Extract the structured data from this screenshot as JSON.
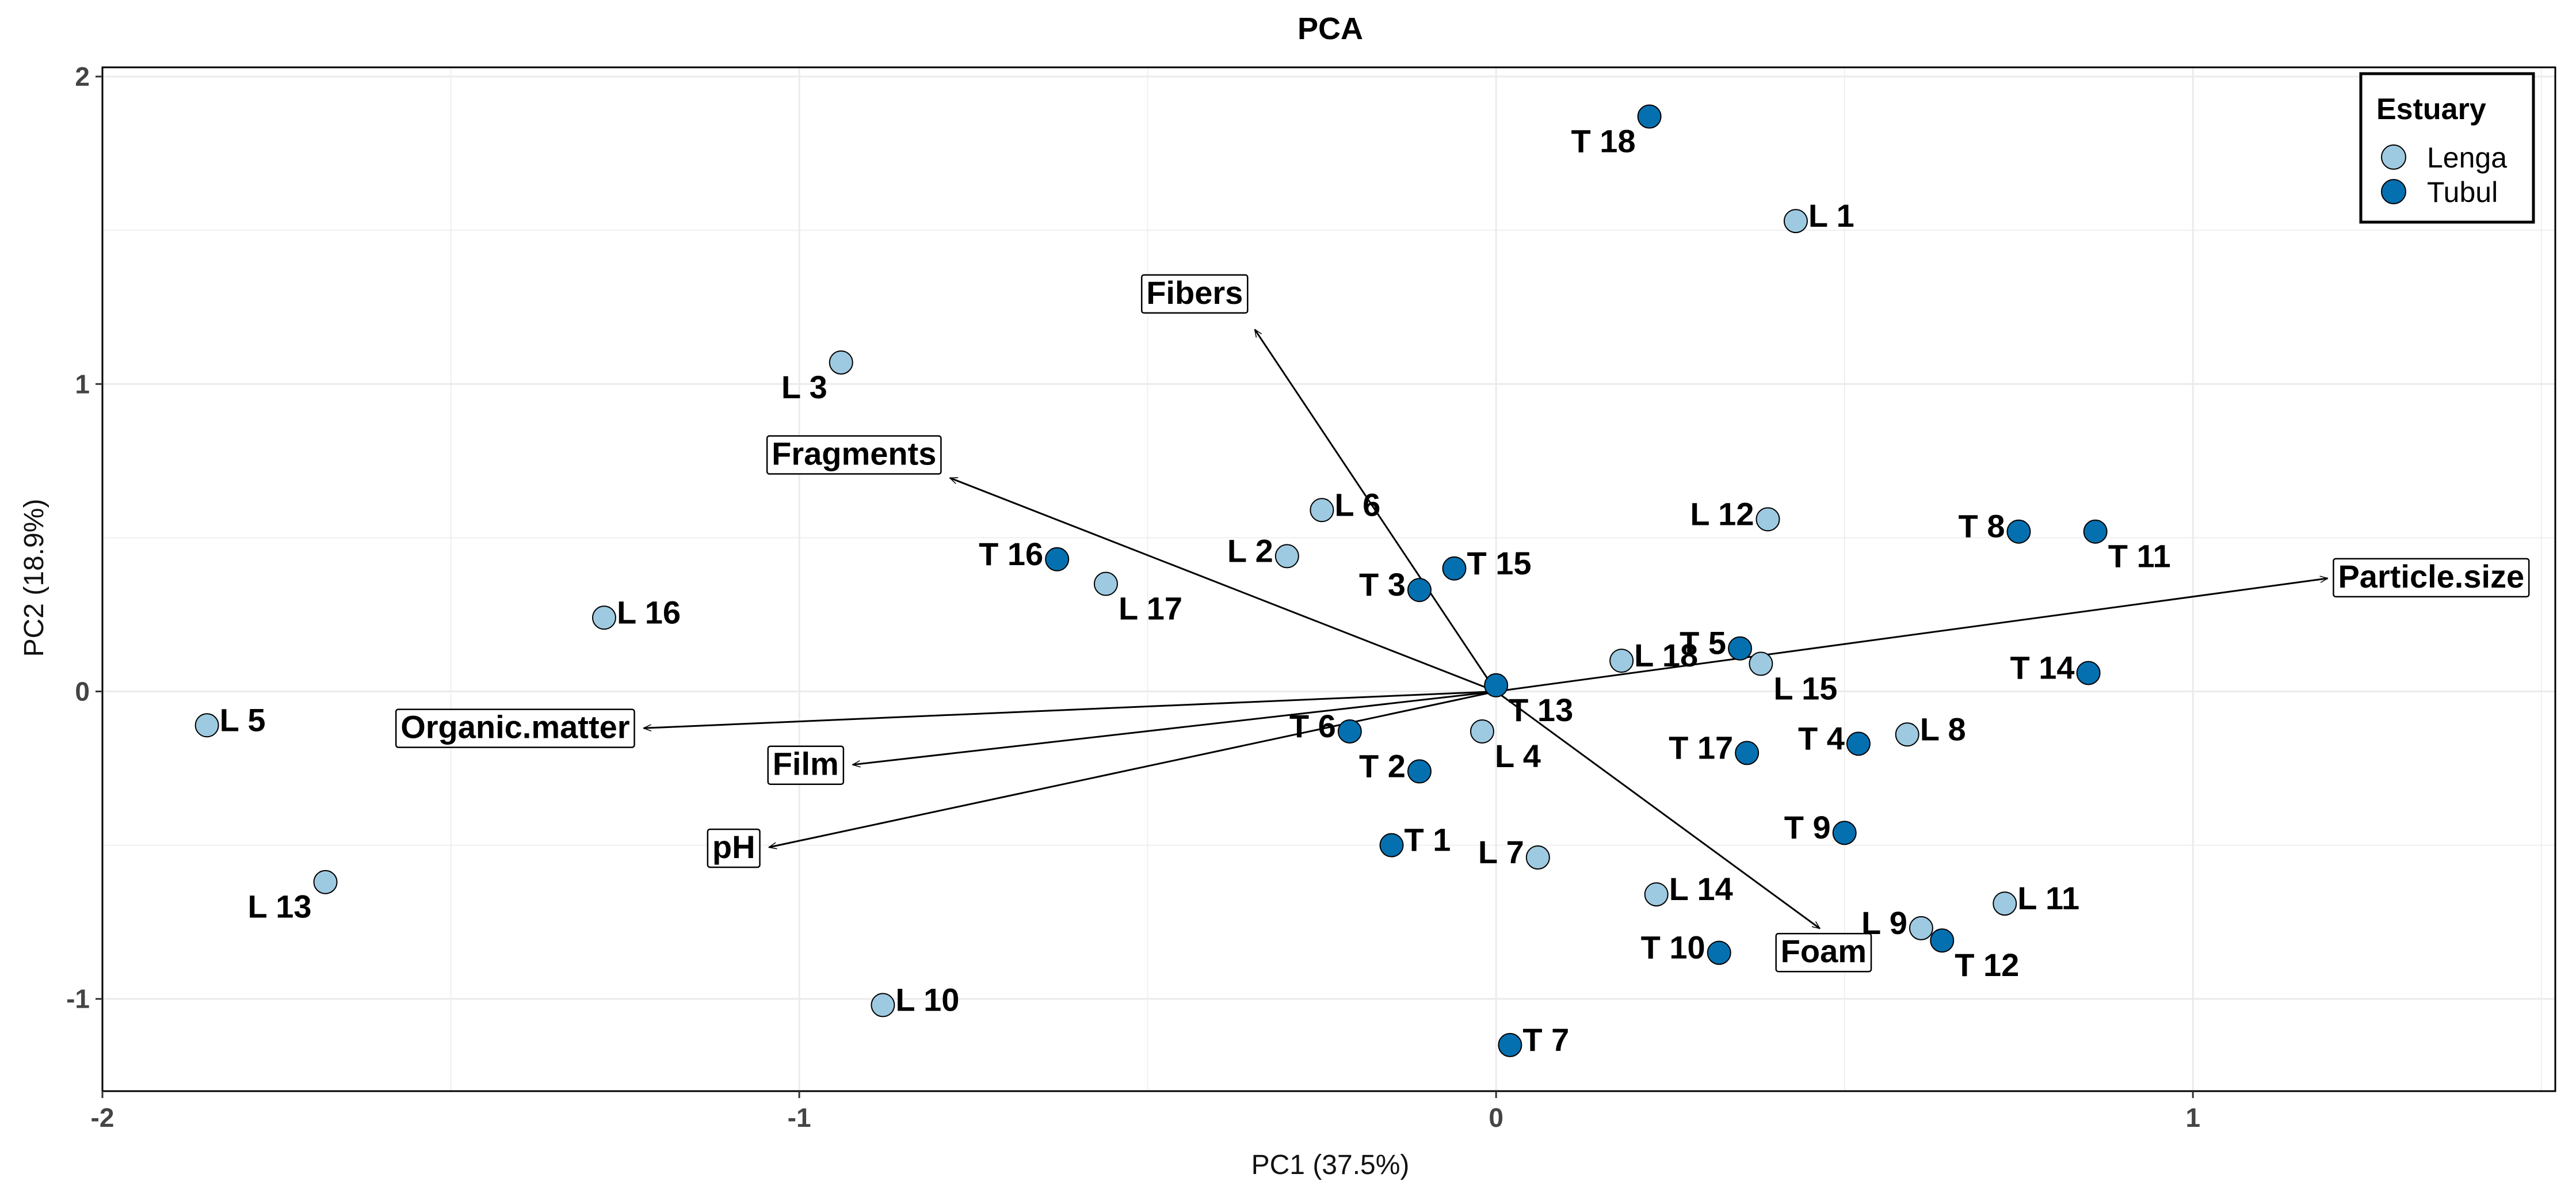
{
  "chart_data": {
    "type": "scatter",
    "title": "PCA",
    "xlabel": "PC1 (37.5%)",
    "ylabel": "PC2 (18.9%)",
    "xlim": [
      -2.0,
      1.52
    ],
    "ylim": [
      -1.3,
      2.03
    ],
    "x_ticks": [
      -2,
      -1,
      0,
      1
    ],
    "y_ticks": [
      2,
      1,
      0,
      -1
    ],
    "grid": true,
    "legend": {
      "title": "Estuary",
      "placement": "top-right",
      "entries": [
        {
          "name": "Lenga",
          "color": "#9ecae1"
        },
        {
          "name": "Tubul",
          "color": "#0570b0"
        }
      ]
    },
    "series": [
      {
        "name": "Lenga",
        "color": "#9ecae1",
        "points": [
          {
            "label": "L 1",
            "x": 0.43,
            "y": 1.53
          },
          {
            "label": "L 2",
            "x": -0.3,
            "y": 0.44
          },
          {
            "label": "L 3",
            "x": -0.94,
            "y": 1.07
          },
          {
            "label": "L 4",
            "x": -0.02,
            "y": -0.13
          },
          {
            "label": "L 5",
            "x": -1.85,
            "y": -0.11
          },
          {
            "label": "L 6",
            "x": -0.25,
            "y": 0.59
          },
          {
            "label": "L 7",
            "x": 0.06,
            "y": -0.54
          },
          {
            "label": "L 8",
            "x": 0.59,
            "y": -0.14
          },
          {
            "label": "L 9",
            "x": 0.61,
            "y": -0.77
          },
          {
            "label": "L 10",
            "x": -0.88,
            "y": -1.02
          },
          {
            "label": "L 11",
            "x": 0.73,
            "y": -0.69
          },
          {
            "label": "L 12",
            "x": 0.39,
            "y": 0.56
          },
          {
            "label": "L 13",
            "x": -1.68,
            "y": -0.62
          },
          {
            "label": "L 14",
            "x": 0.23,
            "y": -0.66
          },
          {
            "label": "L 15",
            "x": 0.38,
            "y": 0.09
          },
          {
            "label": "L 16",
            "x": -1.28,
            "y": 0.24
          },
          {
            "label": "L 17",
            "x": -0.56,
            "y": 0.35
          },
          {
            "label": "L 18",
            "x": 0.18,
            "y": 0.1
          }
        ]
      },
      {
        "name": "Tubul",
        "color": "#0570b0",
        "points": [
          {
            "label": "T 1",
            "x": -0.15,
            "y": -0.5
          },
          {
            "label": "T 2",
            "x": -0.11,
            "y": -0.26
          },
          {
            "label": "T 3",
            "x": -0.11,
            "y": 0.33
          },
          {
            "label": "T 4",
            "x": 0.52,
            "y": -0.17
          },
          {
            "label": "T 5",
            "x": 0.35,
            "y": 0.14
          },
          {
            "label": "T 6",
            "x": -0.21,
            "y": -0.13
          },
          {
            "label": "T 7",
            "x": 0.02,
            "y": -1.15
          },
          {
            "label": "T 8",
            "x": 0.75,
            "y": 0.52
          },
          {
            "label": "T 9",
            "x": 0.5,
            "y": -0.46
          },
          {
            "label": "T 10",
            "x": 0.32,
            "y": -0.85
          },
          {
            "label": "T 11",
            "x": 0.86,
            "y": 0.52
          },
          {
            "label": "T 12",
            "x": 0.64,
            "y": -0.81
          },
          {
            "label": "T 13",
            "x": 0.0,
            "y": 0.02
          },
          {
            "label": "T 14",
            "x": 0.85,
            "y": 0.06
          },
          {
            "label": "T 15",
            "x": -0.06,
            "y": 0.4
          },
          {
            "label": "T 16",
            "x": -0.63,
            "y": 0.43
          },
          {
            "label": "T 17",
            "x": 0.36,
            "y": -0.2
          },
          {
            "label": "T 18",
            "x": 0.22,
            "y": 1.87
          }
        ]
      }
    ],
    "loadings": [
      {
        "label": "Particle.size",
        "x": 1.2,
        "y": 0.37
      },
      {
        "label": "Fibers",
        "x": -0.35,
        "y": 1.19
      },
      {
        "label": "Fragments",
        "x": -0.79,
        "y": 0.7
      },
      {
        "label": "Organic.matter",
        "x": -1.23,
        "y": -0.12
      },
      {
        "label": "Film",
        "x": -0.93,
        "y": -0.24
      },
      {
        "label": "pH",
        "x": -1.05,
        "y": -0.51
      },
      {
        "label": "Foam",
        "x": 0.47,
        "y": -0.78
      }
    ]
  }
}
